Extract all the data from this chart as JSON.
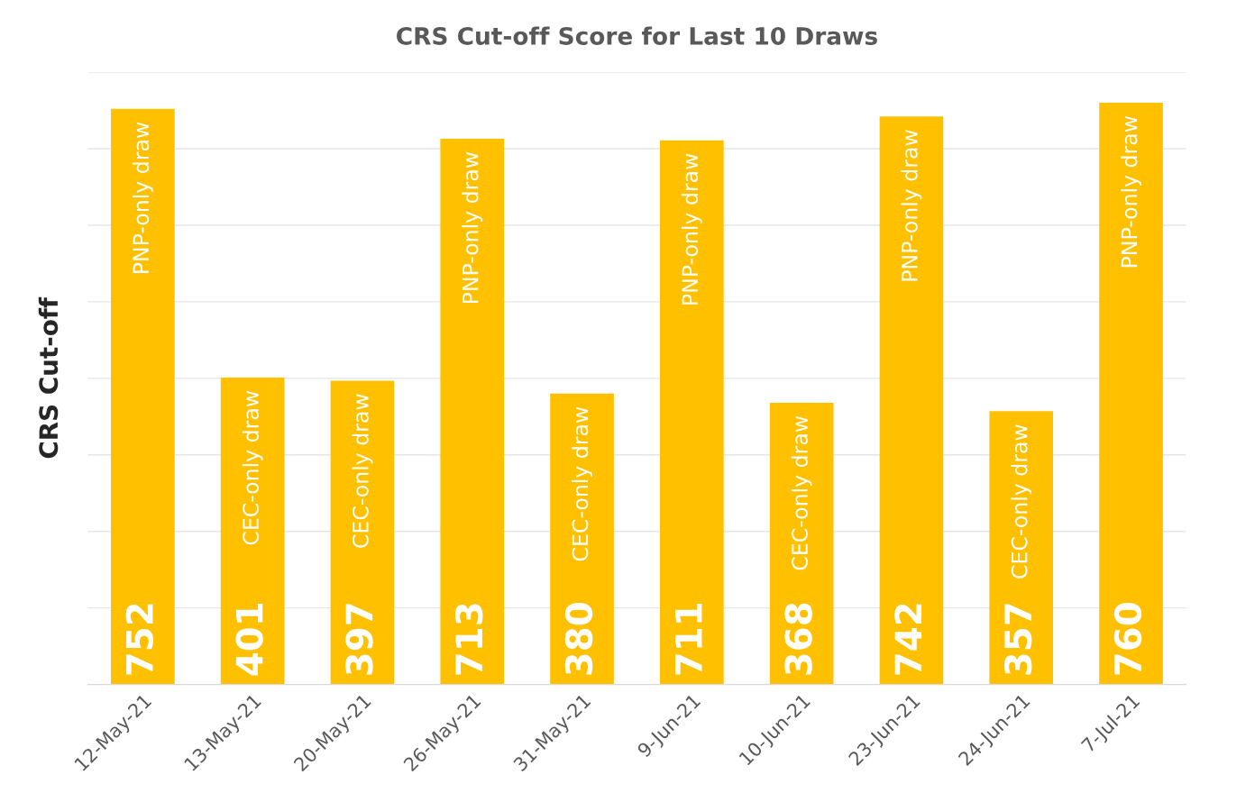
{
  "chart_data": {
    "type": "bar",
    "title": "CRS Cut-off Score for Last 10 Draws",
    "ylabel": "CRS Cut-off",
    "categories": [
      "12-May-21",
      "13-May-21",
      "20-May-21",
      "26-May-21",
      "31-May-21",
      "9-Jun-21",
      "10-Jun-21",
      "23-Jun-21",
      "24-Jun-21",
      "7-Jul-21"
    ],
    "values": [
      752,
      401,
      397,
      713,
      380,
      711,
      368,
      742,
      357,
      760
    ],
    "color": "#ffc000",
    "data_labels": true,
    "ylim": [
      0,
      800
    ],
    "yticks": [
      {
        "value": 0,
        "label": null
      },
      {
        "value": 100,
        "label": null
      },
      {
        "value": 200,
        "label": null
      },
      {
        "value": 300,
        "label": null
      },
      {
        "value": 400,
        "label": null
      },
      {
        "value": 500,
        "label": null
      },
      {
        "value": 600,
        "label": null
      },
      {
        "value": 700,
        "label": null
      },
      {
        "value": 800,
        "label": null
      }
    ],
    "tick_labels": "x",
    "grid": "y",
    "annotations": [
      {
        "text": "PNP-only draw",
        "x": "12-May-21",
        "y": 752
      },
      {
        "text": "CEC-only draw",
        "x": "13-May-21",
        "y": 401
      },
      {
        "text": "CEC-only draw",
        "x": "20-May-21",
        "y": 397
      },
      {
        "text": "PNP-only draw",
        "x": "26-May-21",
        "y": 713
      },
      {
        "text": "CEC-only draw",
        "x": "31-May-21",
        "y": 380
      },
      {
        "text": "PNP-only draw",
        "x": "9-Jun-21",
        "y": 711
      },
      {
        "text": "CEC-only draw",
        "x": "10-Jun-21",
        "y": 368
      },
      {
        "text": "PNP-only draw",
        "x": "23-Jun-21",
        "y": 742
      },
      {
        "text": "CEC-only draw",
        "x": "24-Jun-21",
        "y": 357
      },
      {
        "text": "PNP-only draw",
        "x": "7-Jul-21",
        "y": 760
      }
    ]
  }
}
